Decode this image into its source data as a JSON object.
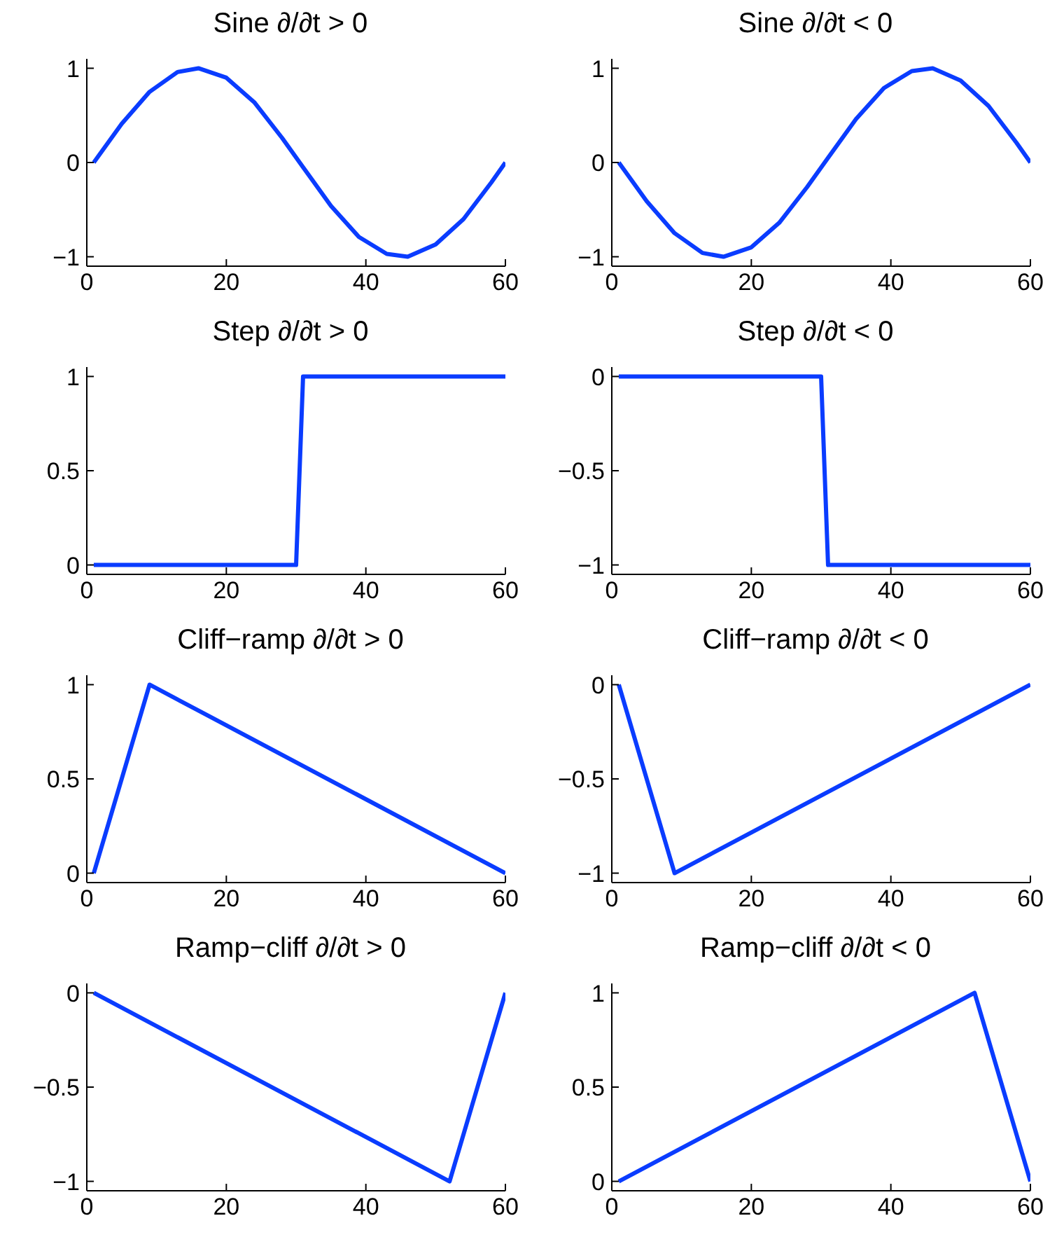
{
  "chart_data": [
    {
      "type": "line",
      "title": "Sine ∂/∂t > 0",
      "x": [
        1,
        5,
        9,
        13,
        16,
        20,
        24,
        28,
        31,
        35,
        39,
        43,
        46,
        50,
        54,
        58,
        60
      ],
      "values": [
        0,
        0.41,
        0.75,
        0.96,
        1,
        0.9,
        0.64,
        0.26,
        -0.05,
        -0.46,
        -0.79,
        -0.97,
        -1,
        -0.87,
        -0.6,
        -0.21,
        0
      ],
      "color": "#0a3cff",
      "xlim": [
        0,
        60
      ],
      "xticks": [
        0,
        20,
        40,
        60
      ],
      "ylim": [
        -1.1,
        1.1
      ],
      "yticks": [
        -1,
        0,
        1
      ]
    },
    {
      "type": "line",
      "title": "Sine ∂/∂t < 0",
      "x": [
        1,
        5,
        9,
        13,
        16,
        20,
        24,
        28,
        31,
        35,
        39,
        43,
        46,
        50,
        54,
        58,
        60
      ],
      "values": [
        0,
        -0.41,
        -0.75,
        -0.96,
        -1,
        -0.9,
        -0.64,
        -0.26,
        0.05,
        0.46,
        0.79,
        0.97,
        1,
        0.87,
        0.6,
        0.21,
        0
      ],
      "color": "#0a3cff",
      "xlim": [
        0,
        60
      ],
      "xticks": [
        0,
        20,
        40,
        60
      ],
      "ylim": [
        -1.1,
        1.1
      ],
      "yticks": [
        -1,
        0,
        1
      ]
    },
    {
      "type": "line",
      "title": "Step ∂/∂t > 0",
      "x": [
        1,
        30,
        31,
        60
      ],
      "values": [
        0,
        0,
        1,
        1
      ],
      "color": "#0a3cff",
      "xlim": [
        0,
        60
      ],
      "xticks": [
        0,
        20,
        40,
        60
      ],
      "ylim": [
        -0.05,
        1.05
      ],
      "yticks": [
        0,
        0.5,
        1
      ]
    },
    {
      "type": "line",
      "title": "Step ∂/∂t < 0",
      "x": [
        1,
        30,
        31,
        60
      ],
      "values": [
        0,
        0,
        -1,
        -1
      ],
      "color": "#0a3cff",
      "xlim": [
        0,
        60
      ],
      "xticks": [
        0,
        20,
        40,
        60
      ],
      "ylim": [
        -1.05,
        0.05
      ],
      "yticks": [
        -1,
        -0.5,
        0
      ]
    },
    {
      "type": "line",
      "title": "Cliff−ramp ∂/∂t > 0",
      "x": [
        1,
        9,
        60
      ],
      "values": [
        0,
        1,
        0
      ],
      "color": "#0a3cff",
      "xlim": [
        0,
        60
      ],
      "xticks": [
        0,
        20,
        40,
        60
      ],
      "ylim": [
        -0.05,
        1.05
      ],
      "yticks": [
        0,
        0.5,
        1
      ]
    },
    {
      "type": "line",
      "title": "Cliff−ramp ∂/∂t < 0",
      "x": [
        1,
        9,
        60
      ],
      "values": [
        0,
        -1,
        0
      ],
      "color": "#0a3cff",
      "xlim": [
        0,
        60
      ],
      "xticks": [
        0,
        20,
        40,
        60
      ],
      "ylim": [
        -1.05,
        0.05
      ],
      "yticks": [
        -1,
        -0.5,
        0
      ]
    },
    {
      "type": "line",
      "title": "Ramp−cliff ∂/∂t > 0",
      "x": [
        1,
        52,
        60
      ],
      "values": [
        0,
        -1,
        0
      ],
      "color": "#0a3cff",
      "xlim": [
        0,
        60
      ],
      "xticks": [
        0,
        20,
        40,
        60
      ],
      "ylim": [
        -1.05,
        0.05
      ],
      "yticks": [
        -1,
        -0.5,
        0
      ]
    },
    {
      "type": "line",
      "title": "Ramp−cliff ∂/∂t < 0",
      "x": [
        1,
        52,
        60
      ],
      "values": [
        0,
        1,
        0
      ],
      "color": "#0a3cff",
      "xlim": [
        0,
        60
      ],
      "xticks": [
        0,
        20,
        40,
        60
      ],
      "ylim": [
        -0.05,
        1.05
      ],
      "yticks": [
        0,
        0.5,
        1
      ]
    }
  ]
}
